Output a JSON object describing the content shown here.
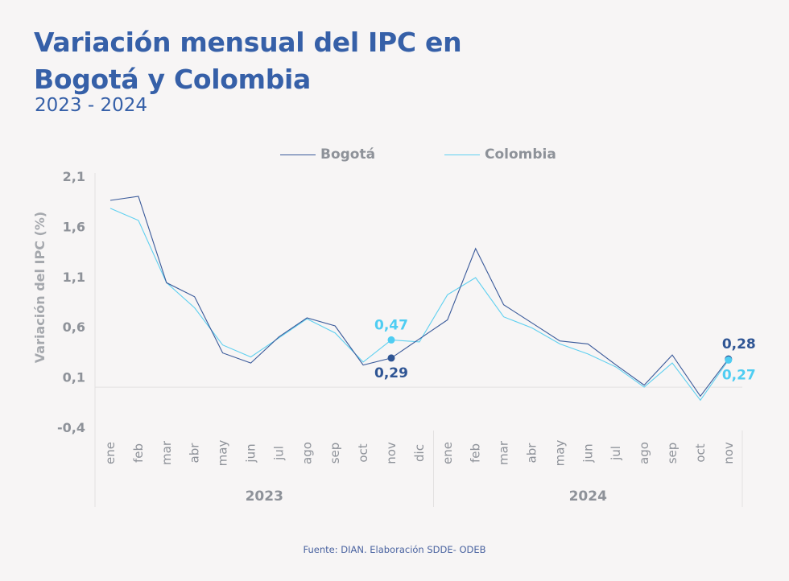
{
  "header": {
    "title_line1": "Variación mensual del IPC en",
    "title_line2": "Bogotá y Colombia",
    "subtitle": "2023 - 2024"
  },
  "colors": {
    "title": "#3660a8",
    "bogota": "#3a5a9a",
    "colombia": "#5fd0f0",
    "axis_text": "#8e9299",
    "grid": "#e3e1e1"
  },
  "source": "Fuente: DIAN. Elaboración SDDE- ODEB",
  "chart_data": {
    "type": "line",
    "title": "Variación mensual del IPC en Bogotá y Colombia",
    "subtitle": "2023 - 2024",
    "xlabel": "",
    "ylabel": "Variación del IPC (%)",
    "ylim": [
      -0.4,
      2.1
    ],
    "yticks": [
      2.1,
      1.6,
      1.1,
      0.6,
      0.1,
      -0.4
    ],
    "ytick_labels": [
      "2,1",
      "1,6",
      "1,1",
      "0,6",
      "0,1",
      "-0,4"
    ],
    "grid": false,
    "baseline": 0,
    "legend_position": "top-center",
    "groups": [
      {
        "label": "2023",
        "categories": [
          "ene",
          "feb",
          "mar",
          "abr",
          "may",
          "jun",
          "jul",
          "ago",
          "sep",
          "oct",
          "nov",
          "dic"
        ]
      },
      {
        "label": "2024",
        "categories": [
          "ene",
          "feb",
          "mar",
          "abr",
          "may",
          "jun",
          "jul",
          "ago",
          "sep",
          "oct",
          "nov"
        ]
      }
    ],
    "categories": [
      "ene 2023",
      "feb 2023",
      "mar 2023",
      "abr 2023",
      "may 2023",
      "jun 2023",
      "jul 2023",
      "ago 2023",
      "sep 2023",
      "oct 2023",
      "nov 2023",
      "dic 2023",
      "ene 2024",
      "feb 2024",
      "mar 2024",
      "abr 2024",
      "may 2024",
      "jun 2024",
      "jul 2024",
      "ago 2024",
      "sep 2024",
      "oct 2024",
      "nov 2024"
    ],
    "series": [
      {
        "name": "Bogotá",
        "values": [
          1.86,
          1.9,
          1.04,
          0.9,
          0.34,
          0.24,
          0.5,
          0.69,
          0.61,
          0.22,
          0.29,
          0.48,
          0.67,
          1.38,
          0.82,
          0.64,
          0.46,
          0.43,
          0.22,
          0.02,
          0.32,
          -0.09,
          0.28
        ]
      },
      {
        "name": "Colombia",
        "values": [
          1.78,
          1.66,
          1.04,
          0.79,
          0.42,
          0.3,
          0.49,
          0.68,
          0.54,
          0.25,
          0.47,
          0.45,
          0.92,
          1.09,
          0.7,
          0.59,
          0.43,
          0.33,
          0.2,
          0.0,
          0.24,
          -0.13,
          0.27
        ]
      }
    ],
    "annotations": [
      {
        "series": "Colombia",
        "index": 10,
        "text": "0,47",
        "position": "above"
      },
      {
        "series": "Bogotá",
        "index": 10,
        "text": "0,29",
        "position": "below"
      },
      {
        "series": "Bogotá",
        "index": 22,
        "text": "0,28",
        "position": "above"
      },
      {
        "series": "Colombia",
        "index": 22,
        "text": "0,27",
        "position": "below"
      }
    ]
  }
}
